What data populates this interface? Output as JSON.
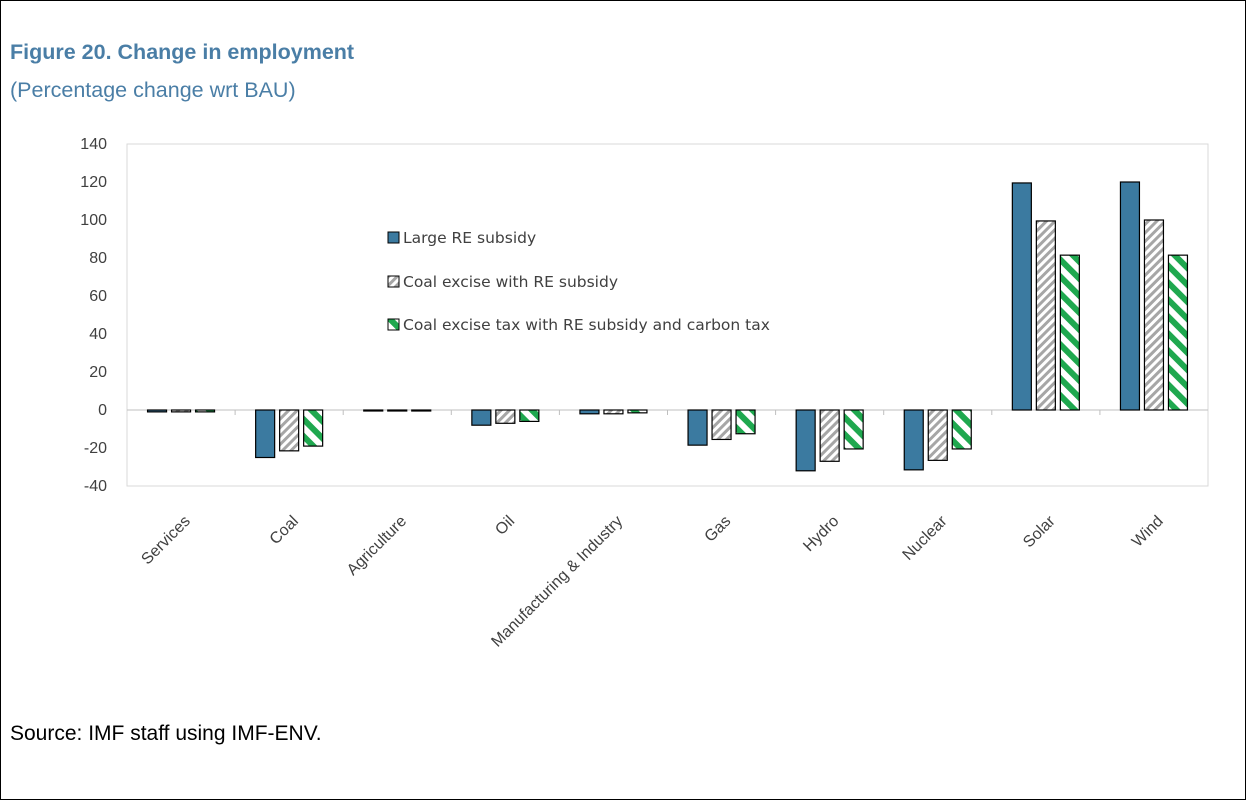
{
  "figure": {
    "title": "Figure 20. Change in employment",
    "subtitle": "(Percentage change wrt BAU)",
    "source": "Source: IMF staff using IMF-ENV."
  },
  "colors": {
    "title": "#4a7ea6",
    "series1_fill": "#3b7aa0",
    "series2_stripe": "#a6a6a6",
    "series3_stripe": "#1fa84f",
    "axis": "#bfbfbf",
    "text": "#404040"
  },
  "chart_data": {
    "type": "bar",
    "categories": [
      "Services",
      "Coal",
      "Agriculture",
      "Oil",
      "Manufacturing & Industry",
      "Gas",
      "Hydro",
      "Nuclear",
      "Solar",
      "Wind"
    ],
    "series": [
      {
        "name": "Large RE subsidy",
        "values": [
          -1,
          -25,
          -0.5,
          -8,
          -2,
          -18.5,
          -32,
          -31.5,
          119.5,
          120
        ]
      },
      {
        "name": "Coal excise with RE subsidy",
        "values": [
          -1,
          -21.5,
          -0.5,
          -7,
          -2,
          -15.5,
          -27,
          -26.5,
          99.5,
          100
        ]
      },
      {
        "name": "Coal excise tax with RE subsidy and carbon tax",
        "values": [
          -1,
          -19,
          -0.5,
          -6,
          -1.5,
          -12.5,
          -20.5,
          -20.5,
          81.5,
          81.5
        ]
      }
    ],
    "ylim": [
      -40,
      140
    ],
    "yticks": [
      140,
      120,
      100,
      80,
      60,
      40,
      20,
      0,
      -20,
      -40
    ],
    "xlabel": "",
    "ylabel": "",
    "legend_position": "inside-upper-center",
    "grid": false
  }
}
